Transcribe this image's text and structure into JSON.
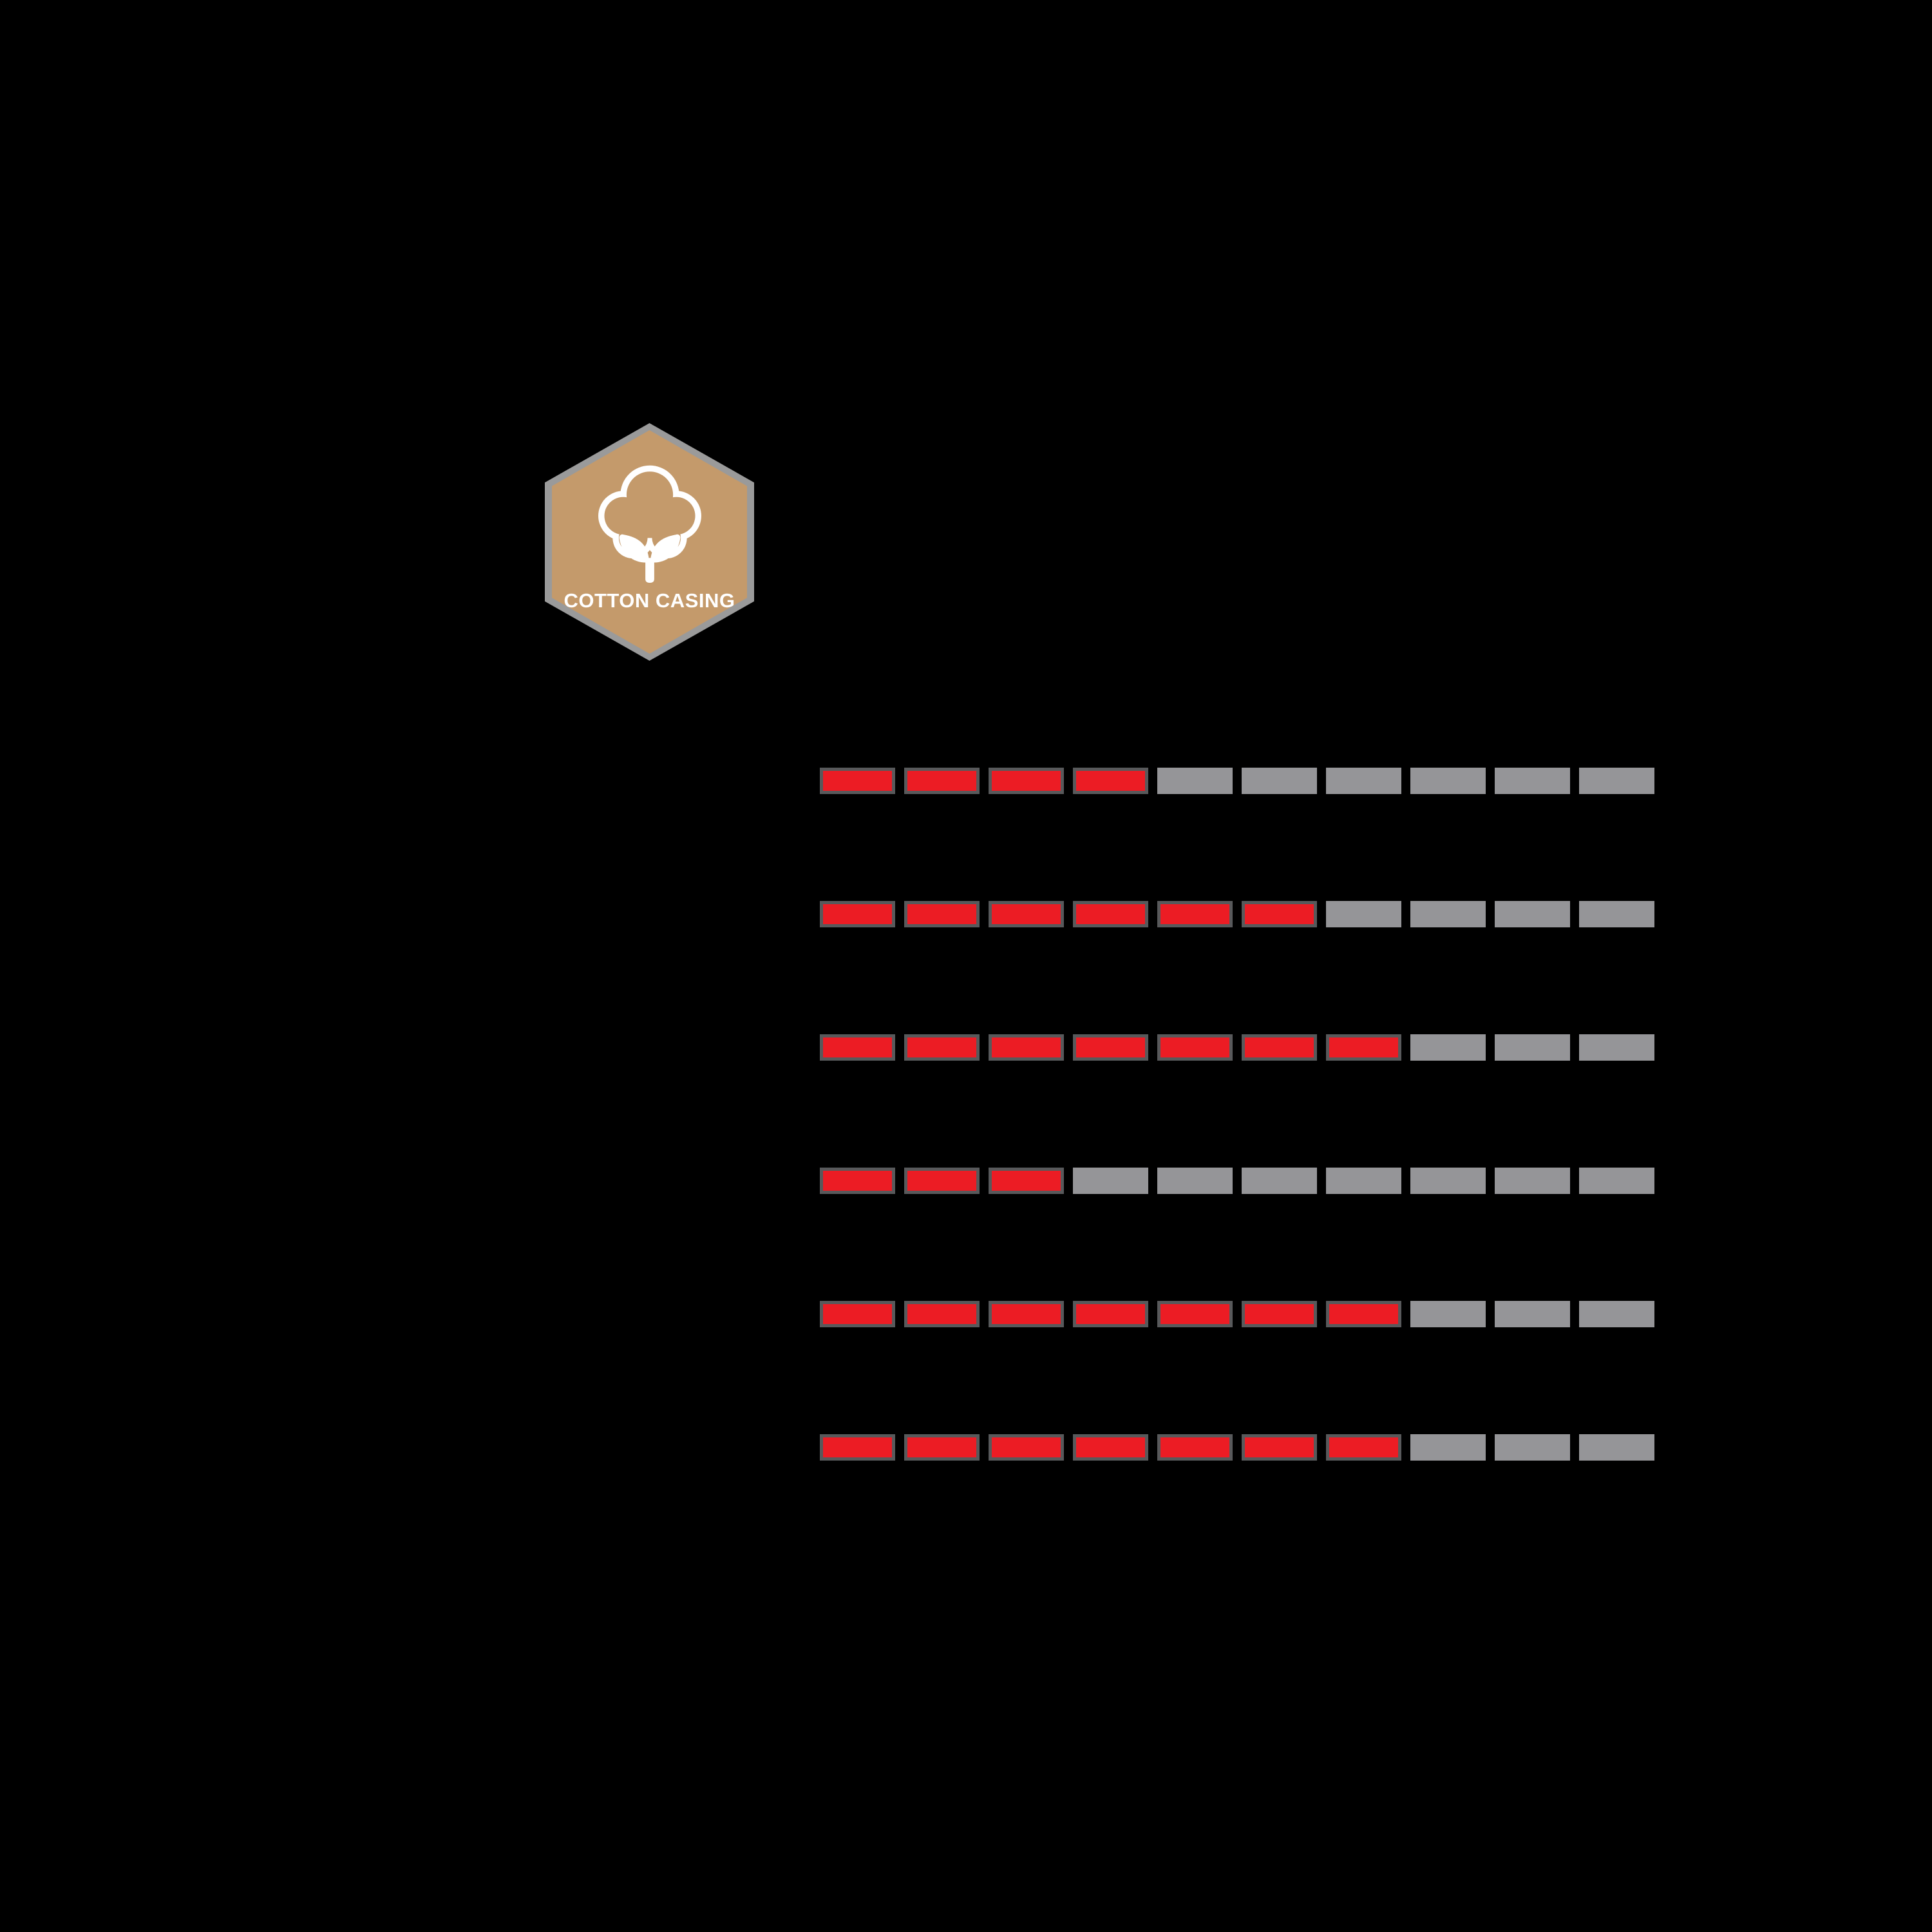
{
  "page": {
    "background_color": "#000000"
  },
  "badge": {
    "label": "COTTON CASING",
    "icon": "cotton-boll-icon",
    "bg_color": "#C49A6B",
    "halo_color": "#9A9A9A",
    "icon_color": "#FFFFFF",
    "label_color": "#FFFFFF"
  },
  "ratings": {
    "segments_total": 10,
    "filled_color": "#EC1C24",
    "filled_border_color": "#58595B",
    "empty_color": "#959598",
    "rows": [
      {
        "filled": 4
      },
      {
        "filled": 6
      },
      {
        "filled": 7
      },
      {
        "filled": 3
      },
      {
        "filled": 7
      },
      {
        "filled": 7
      }
    ]
  },
  "chart_data": {
    "type": "bar",
    "subtype": "segmented-rating-bars",
    "categories": [
      "row-1",
      "row-2",
      "row-3",
      "row-4",
      "row-5",
      "row-6"
    ],
    "values": [
      4,
      6,
      7,
      3,
      7,
      7
    ],
    "value_max": 10,
    "segments_per_bar": 10,
    "title": "",
    "xlabel": "",
    "ylabel": "",
    "legend": [],
    "filled_color": "#EC1C24",
    "empty_color": "#959598",
    "grid": false
  }
}
